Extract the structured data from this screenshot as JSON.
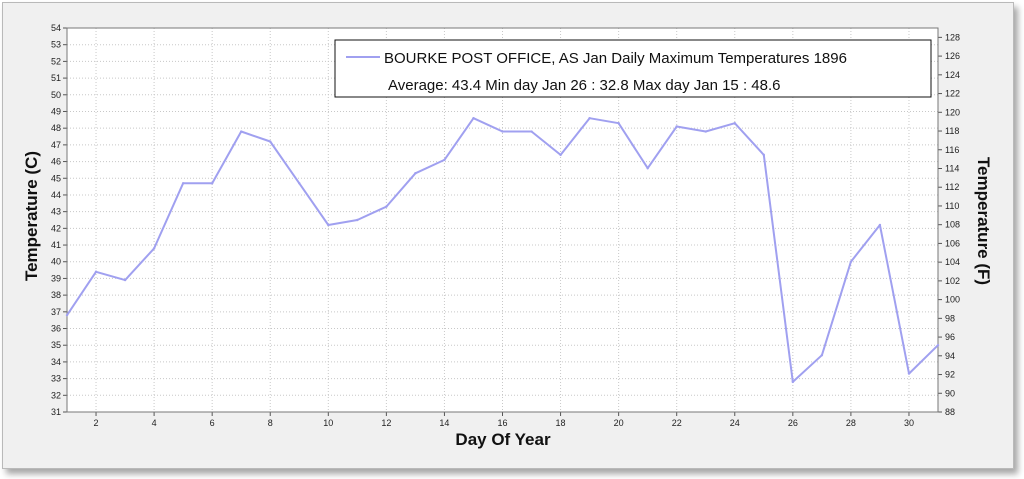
{
  "chart_data": {
    "type": "line",
    "legend": {
      "series_name": "BOURKE POST OFFICE, AS  Jan  Daily Maximum Temperatures 1896",
      "summary": "Average: 43.4  Min day Jan 26 : 32.8  Max day Jan 15 : 48.6",
      "position": "top-right"
    },
    "xlabel": "Day Of Year",
    "ylabel": "Temperature (C)",
    "ylabel_right": "Temperature (F)",
    "xlim": [
      1,
      31
    ],
    "ylim": [
      31,
      54
    ],
    "ylim_right": [
      88,
      129
    ],
    "x_ticks": [
      2,
      4,
      6,
      8,
      10,
      12,
      14,
      16,
      18,
      20,
      22,
      24,
      26,
      28,
      30
    ],
    "y_ticks": [
      31,
      32,
      33,
      34,
      35,
      36,
      37,
      38,
      39,
      40,
      41,
      42,
      43,
      44,
      45,
      46,
      47,
      48,
      49,
      50,
      51,
      52,
      53,
      54
    ],
    "y_ticks_right": [
      88,
      90,
      92,
      94,
      96,
      98,
      100,
      102,
      104,
      106,
      108,
      110,
      112,
      114,
      116,
      118,
      120,
      122,
      124,
      126,
      128
    ],
    "grid": true,
    "line_color": "#a0a0f0",
    "x": [
      1,
      2,
      3,
      4,
      5,
      6,
      7,
      8,
      9,
      10,
      11,
      12,
      13,
      14,
      15,
      16,
      17,
      18,
      19,
      20,
      21,
      22,
      23,
      24,
      25,
      26,
      27,
      28,
      29,
      30,
      31
    ],
    "values": [
      36.8,
      39.4,
      38.9,
      40.8,
      44.7,
      44.7,
      47.8,
      47.2,
      44.7,
      42.2,
      42.5,
      43.3,
      45.3,
      46.1,
      48.6,
      47.8,
      47.8,
      46.4,
      48.6,
      48.3,
      45.6,
      48.1,
      47.8,
      48.3,
      46.4,
      32.8,
      34.4,
      40.0,
      42.2,
      33.3,
      35.0
    ]
  }
}
